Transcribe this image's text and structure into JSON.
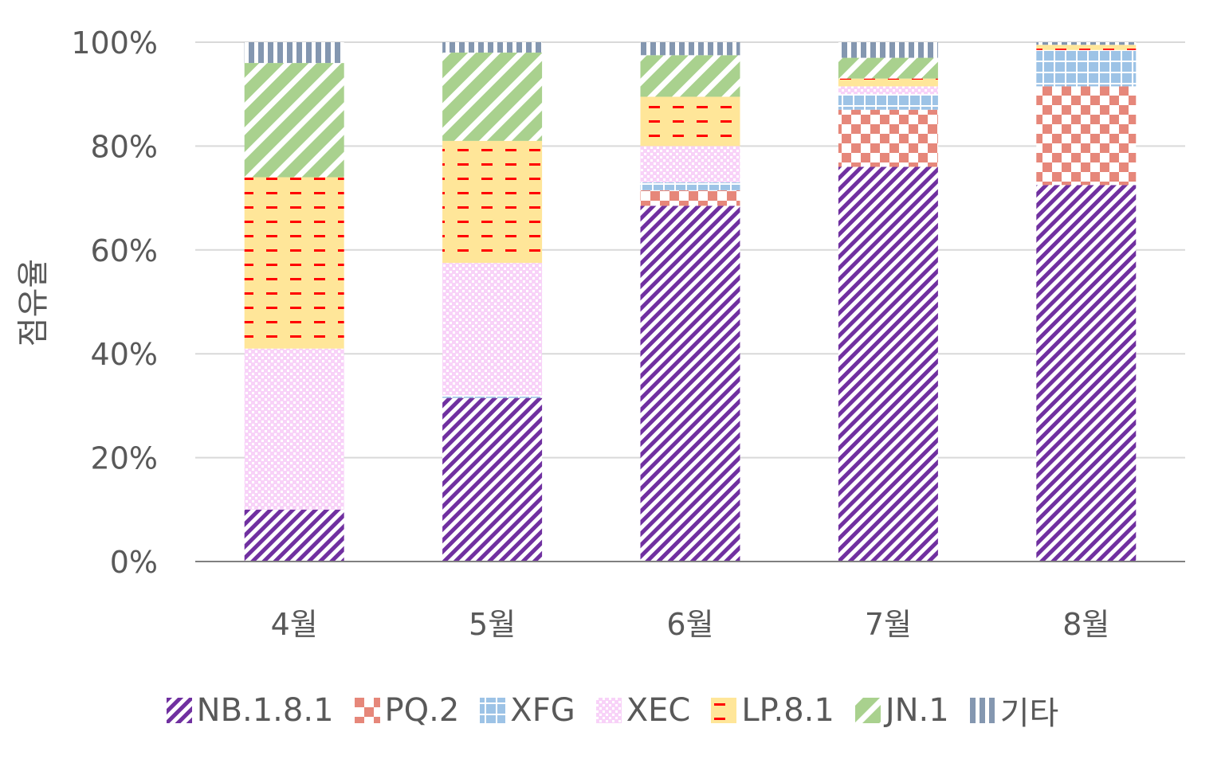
{
  "chart_data": {
    "type": "bar",
    "stacked": true,
    "title": "",
    "xlabel": "",
    "ylabel": "점유율",
    "ylim": [
      0,
      100
    ],
    "yticks": [
      "0%",
      "20%",
      "40%",
      "60%",
      "80%",
      "100%"
    ],
    "grid": true,
    "legend_position": "bottom",
    "categories": [
      "4월",
      "5월",
      "6월",
      "7월",
      "8월"
    ],
    "series": [
      {
        "name": "NB.1.8.1",
        "values": [
          10,
          31.5,
          68.5,
          76,
          72.5
        ],
        "color": "#7030A0",
        "pattern": "diagonal-stripes"
      },
      {
        "name": "PQ.2",
        "values": [
          0,
          0,
          3,
          11,
          19
        ],
        "color": "#E6877A",
        "pattern": "checker"
      },
      {
        "name": "XFG",
        "values": [
          0,
          0.5,
          1.5,
          3,
          7
        ],
        "color": "#9DC3E6",
        "pattern": "grid"
      },
      {
        "name": "XEC",
        "values": [
          31,
          25.5,
          7,
          1.5,
          0
        ],
        "color": "#F4B8F4",
        "pattern": "dots"
      },
      {
        "name": "LP.8.1",
        "values": [
          33,
          23.5,
          9.5,
          1.5,
          1
        ],
        "color": "#FFE699",
        "pattern": "dashes"
      },
      {
        "name": "JN.1",
        "values": [
          22,
          17,
          8,
          4,
          0
        ],
        "color": "#A9D18E",
        "pattern": "wide-diagonal"
      },
      {
        "name": "기타",
        "values": [
          4,
          2,
          2.5,
          3,
          0.5
        ],
        "color": "#8497B0",
        "pattern": "vertical-stripes"
      }
    ]
  }
}
